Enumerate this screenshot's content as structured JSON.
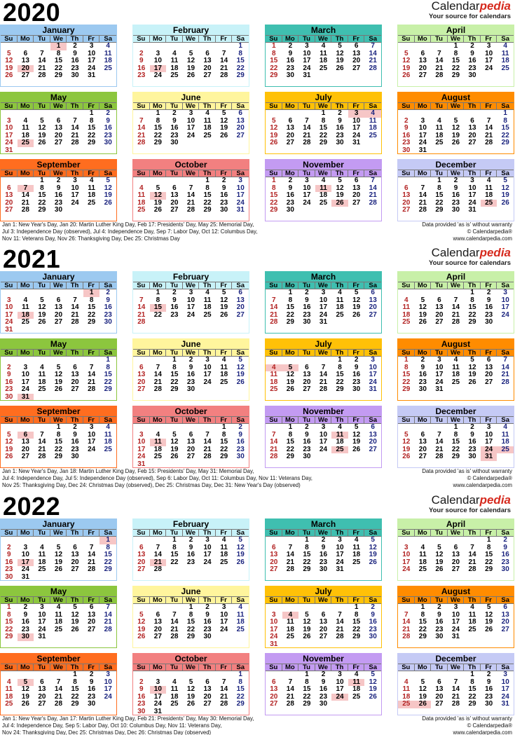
{
  "brand": {
    "name_part1": "Calendar",
    "name_part2": "pedia",
    "tagline": "Your source for calendars"
  },
  "days_of_week": [
    "Su",
    "Mo",
    "Tu",
    "We",
    "Th",
    "Fr",
    "Sa"
  ],
  "provided": {
    "line1": "Data provided 'as is' without warranty",
    "line2": "© Calendarpedia®",
    "line3": "www.calendarpedia.com"
  },
  "month_names": [
    "January",
    "February",
    "March",
    "April",
    "May",
    "June",
    "July",
    "August",
    "September",
    "October",
    "November",
    "December"
  ],
  "colors": {
    "January": "#9cc9f0",
    "February": "#c8f2f8",
    "March": "#3fbfb0",
    "April": "#c8f0a8",
    "May": "#8cc63e",
    "June": "#fff59d",
    "July": "#ffc107",
    "August": "#ff8c00",
    "September": "#ff6d1f",
    "October": "#f28080",
    "November": "#c39bf2",
    "December": "#c5caf5"
  },
  "years": [
    {
      "year": "2020",
      "start_days": [
        3,
        6,
        0,
        3,
        5,
        1,
        3,
        6,
        2,
        4,
        0,
        2
      ],
      "lengths": [
        31,
        29,
        31,
        30,
        31,
        30,
        31,
        31,
        30,
        31,
        30,
        31
      ],
      "holidays": {
        "1": [
          1,
          20
        ],
        "2": [
          17
        ],
        "5": [
          25
        ],
        "7": [
          3,
          4
        ],
        "9": [
          7
        ],
        "10": [
          12
        ],
        "11": [
          11,
          26
        ],
        "12": [
          25
        ]
      },
      "notes": [
        "Jan 1: New Year's Day, Jan 20: Martin Luther King Day, Feb 17: Presidents' Day, May 25: Memorial Day,",
        "Jul 3: Independence Day (observed), Jul 4: Independence Day, Sep 7: Labor Day, Oct 12: Columbus Day,",
        "Nov 11: Veterans Day, Nov 26: Thanksgiving Day, Dec 25: Christmas Day"
      ]
    },
    {
      "year": "2021",
      "start_days": [
        5,
        1,
        1,
        4,
        6,
        2,
        4,
        0,
        3,
        5,
        1,
        3
      ],
      "lengths": [
        31,
        28,
        31,
        30,
        31,
        30,
        31,
        31,
        30,
        31,
        30,
        31
      ],
      "holidays": {
        "1": [
          1,
          18
        ],
        "2": [
          15
        ],
        "5": [
          31
        ],
        "7": [
          4,
          5
        ],
        "9": [
          6
        ],
        "10": [
          11
        ],
        "11": [
          11,
          25
        ],
        "12": [
          24,
          25,
          31
        ]
      },
      "notes": [
        "Jan 1: New Year's Day, Jan 18: Martin Luther King Day, Feb 15: Presidents' Day, May 31: Memorial Day,",
        "Jul 4: Independence Day, Jul 5: Independence Day (observed), Sep 6: Labor Day, Oct 11: Columbus Day, Nov 11: Veterans Day,",
        "Nov 25: Thanksgiving Day, Dec 24: Christmas Day (observed), Dec 25: Christmas Day, Dec 31: New Year's Day (observed)"
      ]
    },
    {
      "year": "2022",
      "start_days": [
        6,
        2,
        2,
        5,
        0,
        3,
        5,
        1,
        4,
        6,
        2,
        4
      ],
      "lengths": [
        31,
        28,
        31,
        30,
        31,
        30,
        31,
        31,
        30,
        31,
        30,
        31
      ],
      "holidays": {
        "1": [
          1,
          17
        ],
        "2": [
          21
        ],
        "5": [
          30
        ],
        "7": [
          4
        ],
        "9": [
          5
        ],
        "10": [
          10
        ],
        "11": [
          11,
          24
        ],
        "12": [
          25,
          26
        ]
      },
      "notes": [
        "Jan 1: New Year's Day, Jan 17: Martin Luther King Day, Feb 21: Presidents' Day, May 30: Memorial Day,",
        "Jul 4: Independence Day, Sep 5: Labor Day, Oct 10: Columbus Day, Nov 11: Veterans Day,",
        "Nov 24: Thanksgiving Day, Dec 25: Christmas Day, Dec 26: Christmas Day (observed)"
      ]
    }
  ]
}
